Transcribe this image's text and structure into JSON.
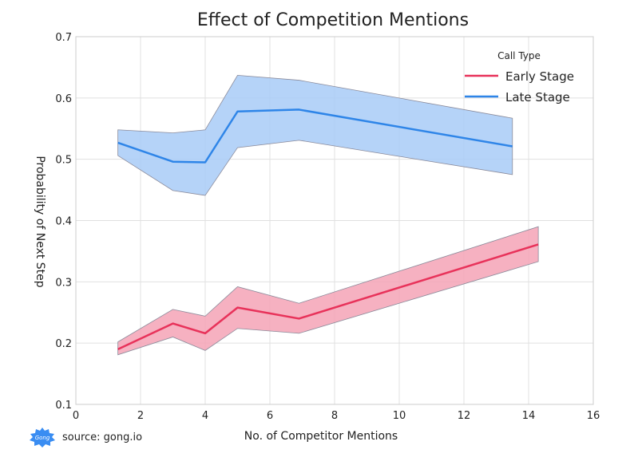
{
  "chart_data": {
    "type": "line",
    "title": "Effect of Competition Mentions",
    "xlabel": "No. of Competitor Mentions",
    "ylabel": "Probability of Next Step",
    "xlim": [
      0,
      16
    ],
    "ylim": [
      0.1,
      0.7
    ],
    "x_ticks": [
      0,
      2,
      4,
      6,
      8,
      10,
      12,
      14,
      16
    ],
    "y_ticks": [
      0.1,
      0.2,
      0.3,
      0.4,
      0.5,
      0.6,
      0.7
    ],
    "x_tick_labels": [
      "0",
      "2",
      "4",
      "6",
      "8",
      "10",
      "12",
      "14",
      "16"
    ],
    "y_tick_labels": [
      "0.1",
      "0.2",
      "0.3",
      "0.4",
      "0.5",
      "0.6",
      "0.7"
    ],
    "grid": true,
    "legend": {
      "title": "Call Type",
      "placement": "top-right"
    },
    "series": [
      {
        "name": "Early Stage",
        "color": "#e8325a",
        "band_color": "#f5a3b6",
        "x": [
          1.3,
          3.0,
          4.0,
          5.0,
          6.9,
          14.3
        ],
        "values": [
          0.19,
          0.232,
          0.216,
          0.258,
          0.24,
          0.361
        ],
        "lower": [
          0.181,
          0.21,
          0.188,
          0.224,
          0.216,
          0.333
        ],
        "upper": [
          0.202,
          0.255,
          0.244,
          0.292,
          0.265,
          0.39
        ]
      },
      {
        "name": "Late Stage",
        "color": "#2e85e8",
        "band_color": "#a8cbf7",
        "x": [
          1.3,
          3.0,
          4.0,
          5.0,
          6.9,
          13.5
        ],
        "values": [
          0.527,
          0.496,
          0.495,
          0.578,
          0.581,
          0.521
        ],
        "lower": [
          0.506,
          0.449,
          0.441,
          0.519,
          0.531,
          0.475
        ],
        "upper": [
          0.548,
          0.543,
          0.548,
          0.637,
          0.629,
          0.567
        ]
      }
    ]
  },
  "footer": {
    "logo_text": "Gong",
    "logo_color": "#3a8df2",
    "source_text": "source: gong.io"
  }
}
